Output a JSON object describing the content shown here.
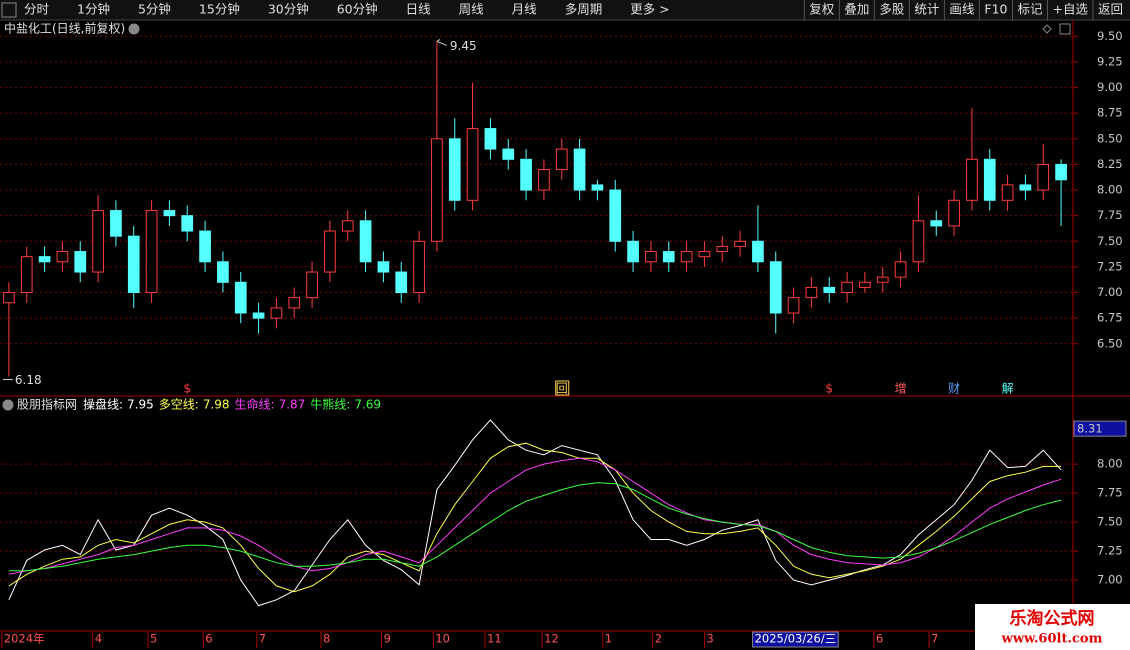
{
  "toolbar": {
    "left": [
      "分时",
      "1分钟",
      "5分钟",
      "15分钟",
      "30分钟",
      "60分钟",
      "日线",
      "周线",
      "月线",
      "多周期",
      "更多 >"
    ],
    "active": "日线",
    "right": [
      "复权",
      "叠加",
      "多股",
      "统计",
      "画线",
      "F10",
      "标记",
      "+自选",
      "返回"
    ]
  },
  "chart_data": [
    {
      "type": "candlestick",
      "title": "中盐化工(日线,前复权)",
      "up_color": "#ff3c3c",
      "down_color": "#54ffff",
      "grid": true,
      "open": [
        6.9,
        7.0,
        7.35,
        7.3,
        7.4,
        7.2,
        7.8,
        7.55,
        7.0,
        7.8,
        7.75,
        7.6,
        7.3,
        7.1,
        6.8,
        6.75,
        6.85,
        6.95,
        7.2,
        7.6,
        7.7,
        7.3,
        7.2,
        7.0,
        7.5,
        8.5,
        7.9,
        8.6,
        8.4,
        8.3,
        8.0,
        8.2,
        8.4,
        8.05,
        8.0,
        7.5,
        7.3,
        7.4,
        7.3,
        7.35,
        7.4,
        7.45,
        7.5,
        7.3,
        6.8,
        6.95,
        7.05,
        7.0,
        7.05,
        7.1,
        7.15,
        7.3,
        7.7,
        7.65,
        7.9,
        8.3,
        7.9,
        8.05,
        8.0,
        8.25
      ],
      "high": [
        7.1,
        7.45,
        7.45,
        7.5,
        7.5,
        7.95,
        7.9,
        7.65,
        7.9,
        7.9,
        7.85,
        7.7,
        7.4,
        7.2,
        6.9,
        6.95,
        7.05,
        7.3,
        7.7,
        7.8,
        7.8,
        7.4,
        7.3,
        7.6,
        9.45,
        8.7,
        9.05,
        8.7,
        8.5,
        8.4,
        8.3,
        8.5,
        8.5,
        8.1,
        8.1,
        7.6,
        7.5,
        7.5,
        7.5,
        7.5,
        7.55,
        7.6,
        7.85,
        7.4,
        7.05,
        7.15,
        7.15,
        7.2,
        7.2,
        7.25,
        7.4,
        7.95,
        7.8,
        8.0,
        8.8,
        8.4,
        8.15,
        8.15,
        8.45,
        8.3
      ],
      "low": [
        6.18,
        6.9,
        7.2,
        7.2,
        7.1,
        7.1,
        7.45,
        6.85,
        6.9,
        7.65,
        7.5,
        7.2,
        7.0,
        6.7,
        6.6,
        6.65,
        6.75,
        6.85,
        7.1,
        7.5,
        7.2,
        7.1,
        6.9,
        6.9,
        7.4,
        7.8,
        7.8,
        8.3,
        8.2,
        7.9,
        7.9,
        8.1,
        7.9,
        7.9,
        7.4,
        7.2,
        7.2,
        7.2,
        7.2,
        7.25,
        7.3,
        7.35,
        7.2,
        6.6,
        6.7,
        6.85,
        6.9,
        6.9,
        7.0,
        7.0,
        7.05,
        7.2,
        7.55,
        7.55,
        7.8,
        7.8,
        7.8,
        7.9,
        7.9,
        7.65
      ],
      "close": [
        7.0,
        7.35,
        7.3,
        7.4,
        7.2,
        7.8,
        7.55,
        7.0,
        7.8,
        7.75,
        7.6,
        7.3,
        7.1,
        6.8,
        6.75,
        6.85,
        6.95,
        7.2,
        7.6,
        7.7,
        7.3,
        7.2,
        7.0,
        7.5,
        8.5,
        7.9,
        8.6,
        8.4,
        8.3,
        8.0,
        8.2,
        8.4,
        8.0,
        8.0,
        7.5,
        7.3,
        7.4,
        7.3,
        7.4,
        7.4,
        7.45,
        7.5,
        7.3,
        6.8,
        6.95,
        7.05,
        7.0,
        7.1,
        7.1,
        7.15,
        7.3,
        7.7,
        7.65,
        7.9,
        8.3,
        7.9,
        8.05,
        8.0,
        8.25,
        8.1
      ],
      "xlim": [
        -0.5,
        59.5
      ],
      "ylim": [
        6.0,
        9.64
      ],
      "yticks": [
        {
          "value": 6.5,
          "label": "6.50"
        },
        {
          "value": 6.75,
          "label": "6.75"
        },
        {
          "value": 7,
          "label": "7.00"
        },
        {
          "value": 7.25,
          "label": "7.25"
        },
        {
          "value": 7.5,
          "label": "7.50"
        },
        {
          "value": 7.75,
          "label": "7.75"
        },
        {
          "value": 8,
          "label": "8.00"
        },
        {
          "value": 8.25,
          "label": "8.25"
        },
        {
          "value": 8.5,
          "label": "8.50"
        },
        {
          "value": 8.75,
          "label": "8.75"
        },
        {
          "value": 9,
          "label": "9.00"
        },
        {
          "value": 9.25,
          "label": "9.25"
        },
        {
          "value": 9.5,
          "label": "9.50"
        }
      ],
      "events": [
        {
          "at": 10,
          "label": "$",
          "color": "#ff3c3c"
        },
        {
          "at": 31,
          "label": "回",
          "color": "#ffd24a"
        },
        {
          "at": 46,
          "label": "$",
          "color": "#ff3c3c"
        },
        {
          "at": 50,
          "label": "增",
          "color": "#ff5a5a"
        },
        {
          "at": 53,
          "label": "财",
          "color": "#5aa0ff"
        },
        {
          "at": 56,
          "label": "解",
          "color": "#54ffff"
        }
      ]
    },
    {
      "type": "line",
      "title": "股朋指标网",
      "grid": true,
      "xlim": [
        -0.5,
        59.5
      ],
      "ylim": [
        6.57,
        8.57
      ],
      "yticks": [
        {
          "value": 7,
          "label": "7.00"
        },
        {
          "value": 7.25,
          "label": "7.25"
        },
        {
          "value": 7.5,
          "label": "7.50"
        },
        {
          "value": 7.75,
          "label": "7.75"
        },
        {
          "value": 8,
          "label": "8.00"
        }
      ],
      "xticks": [
        {
          "value": -0.4,
          "label": "2024年"
        },
        {
          "value": 4.7,
          "label": "4"
        },
        {
          "value": 7.8,
          "label": "5"
        },
        {
          "value": 10.9,
          "label": "6"
        },
        {
          "value": 13.9,
          "label": "7"
        },
        {
          "value": 17.5,
          "label": "8"
        },
        {
          "value": 20.9,
          "label": "9"
        },
        {
          "value": 23.8,
          "label": "10"
        },
        {
          "value": 26.7,
          "label": "11"
        },
        {
          "value": 29.9,
          "label": "12"
        },
        {
          "value": 33.3,
          "label": "1"
        },
        {
          "value": 36.1,
          "label": "2"
        },
        {
          "value": 39,
          "label": "3"
        },
        {
          "value": 48.5,
          "label": "6"
        },
        {
          "value": 51.6,
          "label": "7"
        }
      ],
      "crosshair": {
        "x_at": 41.7,
        "x_label": "2025/03/26/三",
        "y_value": 8.31
      },
      "series": [
        {
          "name": "操盘线:",
          "color": "#ffffff",
          "values": [
            6.83,
            7.17,
            7.26,
            7.3,
            7.22,
            7.52,
            7.26,
            7.3,
            7.56,
            7.62,
            7.56,
            7.47,
            7.35,
            7.0,
            6.78,
            6.83,
            6.91,
            7.13,
            7.35,
            7.52,
            7.3,
            7.17,
            7.09,
            6.96,
            7.78,
            7.99,
            8.21,
            8.38,
            8.21,
            8.12,
            8.08,
            8.16,
            8.12,
            8.08,
            7.86,
            7.52,
            7.35,
            7.35,
            7.3,
            7.35,
            7.43,
            7.47,
            7.52,
            7.17,
            7.0,
            6.96,
            7.0,
            7.04,
            7.09,
            7.13,
            7.22,
            7.39,
            7.52,
            7.65,
            7.86,
            8.12,
            7.97,
            7.98,
            8.12,
            7.95
          ]
        },
        {
          "name": "多空线:",
          "color": "#ffff4a",
          "values": [
            6.95,
            7.05,
            7.12,
            7.18,
            7.2,
            7.3,
            7.35,
            7.32,
            7.4,
            7.48,
            7.52,
            7.5,
            7.45,
            7.3,
            7.1,
            6.95,
            6.9,
            6.95,
            7.05,
            7.2,
            7.25,
            7.22,
            7.15,
            7.08,
            7.4,
            7.65,
            7.85,
            8.05,
            8.15,
            8.18,
            8.12,
            8.1,
            8.05,
            8.05,
            7.95,
            7.75,
            7.6,
            7.5,
            7.42,
            7.4,
            7.4,
            7.42,
            7.45,
            7.3,
            7.12,
            7.05,
            7.02,
            7.05,
            7.08,
            7.12,
            7.18,
            7.3,
            7.42,
            7.55,
            7.7,
            7.85,
            7.9,
            7.93,
            7.98,
            7.98
          ]
        },
        {
          "name": "生命线:",
          "color": "#ff3cff",
          "values": [
            7.05,
            7.08,
            7.1,
            7.14,
            7.18,
            7.22,
            7.28,
            7.3,
            7.35,
            7.4,
            7.45,
            7.45,
            7.43,
            7.38,
            7.3,
            7.2,
            7.12,
            7.08,
            7.1,
            7.15,
            7.22,
            7.25,
            7.2,
            7.15,
            7.3,
            7.45,
            7.6,
            7.75,
            7.85,
            7.95,
            8.0,
            8.03,
            8.05,
            8.02,
            7.95,
            7.85,
            7.75,
            7.65,
            7.58,
            7.52,
            7.5,
            7.48,
            7.48,
            7.42,
            7.3,
            7.22,
            7.18,
            7.15,
            7.14,
            7.13,
            7.15,
            7.2,
            7.28,
            7.38,
            7.5,
            7.62,
            7.7,
            7.76,
            7.82,
            7.87
          ]
        },
        {
          "name": "牛熊线:",
          "color": "#3cff3c",
          "values": [
            7.08,
            7.08,
            7.1,
            7.12,
            7.15,
            7.18,
            7.2,
            7.22,
            7.25,
            7.28,
            7.3,
            7.3,
            7.28,
            7.25,
            7.2,
            7.15,
            7.12,
            7.12,
            7.13,
            7.15,
            7.18,
            7.18,
            7.15,
            7.12,
            7.2,
            7.3,
            7.4,
            7.5,
            7.6,
            7.68,
            7.73,
            7.78,
            7.82,
            7.84,
            7.83,
            7.78,
            7.7,
            7.62,
            7.57,
            7.53,
            7.5,
            7.48,
            7.47,
            7.42,
            7.35,
            7.28,
            7.24,
            7.21,
            7.2,
            7.19,
            7.2,
            7.23,
            7.28,
            7.34,
            7.41,
            7.48,
            7.54,
            7.6,
            7.65,
            7.69
          ]
        }
      ]
    }
  ],
  "watermark": {
    "title": "乐淘公式网",
    "url": "www.60lt.com"
  }
}
